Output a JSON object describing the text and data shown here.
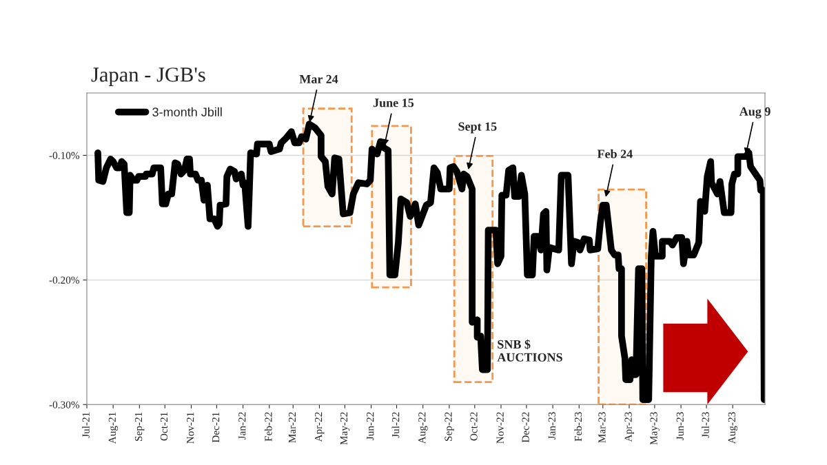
{
  "chart_data": {
    "type": "line",
    "title": "Japan - JGB's",
    "x": [
      "2021-07-14",
      "2021-07-15",
      "2021-07-20",
      "2021-07-24",
      "2021-07-29",
      "2021-08-01",
      "2021-08-05",
      "2021-08-09",
      "2021-08-11",
      "2021-08-14",
      "2021-08-17",
      "2021-08-20",
      "2021-08-21",
      "2021-08-25",
      "2021-08-29",
      "2021-08-31",
      "2021-09-08",
      "2021-09-09",
      "2021-09-16",
      "2021-09-18",
      "2021-09-26",
      "2021-09-28",
      "2021-10-02",
      "2021-10-05",
      "2021-10-09",
      "2021-10-13",
      "2021-10-16",
      "2021-10-20",
      "2021-10-24",
      "2021-10-27",
      "2021-10-30",
      "2021-10-31",
      "2021-11-06",
      "2021-11-09",
      "2021-11-13",
      "2021-11-16",
      "2021-11-20",
      "2021-11-23",
      "2021-11-28",
      "2021-12-02",
      "2021-12-04",
      "2021-12-05",
      "2021-12-12",
      "2021-12-13",
      "2021-12-17",
      "2021-12-22",
      "2021-12-24",
      "2021-12-28",
      "2021-12-30",
      "2022-01-01",
      "2022-01-03",
      "2022-01-07",
      "2022-01-10",
      "2022-01-17",
      "2022-01-18",
      "2022-01-29",
      "2022-02-01",
      "2022-02-03",
      "2022-02-13",
      "2022-02-15",
      "2022-02-21",
      "2022-02-27",
      "2022-03-03",
      "2022-03-08",
      "2022-03-11",
      "2022-03-16",
      "2022-03-20",
      "2022-03-27",
      "2022-04-03",
      "2022-04-03",
      "2022-04-08",
      "2022-04-11",
      "2022-04-16",
      "2022-04-19",
      "2022-04-24",
      "2022-04-29",
      "2022-05-07",
      "2022-05-11",
      "2022-05-17",
      "2022-05-27",
      "2022-05-31",
      "2022-06-02",
      "2022-06-08",
      "2022-06-12",
      "2022-06-16",
      "2022-06-21",
      "2022-06-23",
      "2022-06-29",
      "2022-07-03",
      "2022-07-06",
      "2022-07-13",
      "2022-07-17",
      "2022-07-23",
      "2022-07-27",
      "2022-08-05",
      "2022-08-10",
      "2022-08-14",
      "2022-08-18",
      "2022-08-22",
      "2022-09-01",
      "2022-09-02",
      "2022-09-06",
      "2022-09-10",
      "2022-09-16",
      "2022-09-18",
      "2022-09-22",
      "2022-09-28",
      "2022-09-28",
      "2022-10-04",
      "2022-10-04",
      "2022-10-08",
      "2022-10-10",
      "2022-10-16",
      "2022-10-17",
      "2022-10-26",
      "2022-10-28",
      "2022-11-01",
      "2022-11-02",
      "2022-11-07",
      "2022-11-10",
      "2022-11-15",
      "2022-11-17",
      "2022-11-22",
      "2022-11-25",
      "2022-11-29",
      "2022-12-02",
      "2022-12-08",
      "2022-12-10",
      "2022-12-14",
      "2022-12-18",
      "2022-12-21",
      "2022-12-24",
      "2022-12-25",
      "2022-12-28",
      "2023-01-08",
      "2023-01-10",
      "2023-01-11",
      "2023-01-19",
      "2023-01-23",
      "2023-01-26",
      "2023-01-31",
      "2023-02-02",
      "2023-02-07",
      "2023-02-13",
      "2023-02-14",
      "2023-02-23",
      "2023-02-26",
      "2023-03-01",
      "2023-03-05",
      "2023-03-11",
      "2023-03-15",
      "2023-03-19",
      "2023-03-20",
      "2023-03-23",
      "2023-03-23",
      "2023-03-27",
      "2023-03-28",
      "2023-04-02",
      "2023-04-04",
      "2023-04-06",
      "2023-04-09",
      "2023-04-12",
      "2023-04-16",
      "2023-04-17",
      "2023-04-24",
      "2023-04-27",
      "2023-04-29",
      "2023-05-02",
      "2023-05-10",
      "2023-05-10",
      "2023-05-19",
      "2023-05-22",
      "2023-05-27",
      "2023-06-02",
      "2023-06-04",
      "2023-06-08",
      "2023-06-10",
      "2023-06-16",
      "2023-06-22",
      "2023-06-24",
      "2023-06-29",
      "2023-07-02",
      "2023-07-06",
      "2023-07-07",
      "2023-07-14",
      "2023-07-17",
      "2023-07-22",
      "2023-07-30",
      "2023-07-31",
      "2023-08-03",
      "2023-08-07",
      "2023-08-07",
      "2023-08-16",
      "2023-08-20",
      "2023-08-22",
      "2023-08-29",
      "2023-09-02",
      "2023-09-03",
      "2023-09-06",
      "2023-09-07"
    ],
    "series": [
      {
        "name": "3-month Jbill",
        "color": "#000000",
        "values": [
          -0.098,
          -0.12,
          -0.121,
          -0.11,
          -0.103,
          -0.105,
          -0.11,
          -0.11,
          -0.105,
          -0.107,
          -0.146,
          -0.146,
          -0.116,
          -0.12,
          -0.12,
          -0.117,
          -0.117,
          -0.115,
          -0.115,
          -0.11,
          -0.11,
          -0.139,
          -0.139,
          -0.131,
          -0.131,
          -0.106,
          -0.107,
          -0.115,
          -0.112,
          -0.103,
          -0.103,
          -0.115,
          -0.115,
          -0.12,
          -0.12,
          -0.136,
          -0.124,
          -0.151,
          -0.151,
          -0.157,
          -0.155,
          -0.14,
          -0.139,
          -0.117,
          -0.111,
          -0.113,
          -0.119,
          -0.116,
          -0.115,
          -0.124,
          -0.122,
          -0.157,
          -0.098,
          -0.099,
          -0.091,
          -0.091,
          -0.091,
          -0.097,
          -0.095,
          -0.09,
          -0.086,
          -0.081,
          -0.09,
          -0.09,
          -0.085,
          -0.087,
          -0.075,
          -0.078,
          -0.084,
          -0.101,
          -0.105,
          -0.125,
          -0.131,
          -0.102,
          -0.103,
          -0.147,
          -0.146,
          -0.131,
          -0.122,
          -0.123,
          -0.12,
          -0.095,
          -0.099,
          -0.089,
          -0.094,
          -0.096,
          -0.196,
          -0.196,
          -0.17,
          -0.135,
          -0.138,
          -0.149,
          -0.139,
          -0.156,
          -0.14,
          -0.138,
          -0.11,
          -0.114,
          -0.127,
          -0.127,
          -0.11,
          -0.109,
          -0.113,
          -0.127,
          -0.115,
          -0.117,
          -0.127,
          -0.234,
          -0.232,
          -0.246,
          -0.245,
          -0.272,
          -0.272,
          -0.16,
          -0.16,
          -0.187,
          -0.181,
          -0.132,
          -0.132,
          -0.112,
          -0.11,
          -0.133,
          -0.133,
          -0.116,
          -0.131,
          -0.196,
          -0.196,
          -0.165,
          -0.165,
          -0.176,
          -0.147,
          -0.145,
          -0.192,
          -0.174,
          -0.176,
          -0.136,
          -0.116,
          -0.116,
          -0.187,
          -0.169,
          -0.17,
          -0.176,
          -0.167,
          -0.168,
          -0.176,
          -0.175,
          -0.154,
          -0.14,
          -0.14,
          -0.176,
          -0.18,
          -0.18,
          -0.191,
          -0.191,
          -0.245,
          -0.263,
          -0.28,
          -0.28,
          -0.264,
          -0.276,
          -0.276,
          -0.191,
          -0.191,
          -0.296,
          -0.296,
          -0.181,
          -0.161,
          -0.181,
          -0.181,
          -0.169,
          -0.169,
          -0.172,
          -0.166,
          -0.166,
          -0.187,
          -0.169,
          -0.18,
          -0.18,
          -0.17,
          -0.137,
          -0.145,
          -0.117,
          -0.105,
          -0.122,
          -0.131,
          -0.121,
          -0.146,
          -0.146,
          -0.123,
          -0.115,
          -0.115,
          -0.101,
          -0.101,
          -0.098,
          -0.109,
          -0.116,
          -0.12,
          -0.128,
          -0.128,
          -0.296
        ]
      }
    ],
    "xlim": [
      "2021-07-01",
      "2023-09-08"
    ],
    "xticks": [
      {
        "value": "2021-07-01",
        "label": "Jul-21"
      },
      {
        "value": "2021-08-01",
        "label": "Aug-21"
      },
      {
        "value": "2021-09-01",
        "label": "Sep-21"
      },
      {
        "value": "2021-10-01",
        "label": "Oct-21"
      },
      {
        "value": "2021-11-01",
        "label": "Nov-21"
      },
      {
        "value": "2021-12-01",
        "label": "Dec-21"
      },
      {
        "value": "2022-01-01",
        "label": "Jan-22"
      },
      {
        "value": "2022-02-01",
        "label": "Feb-22"
      },
      {
        "value": "2022-03-01",
        "label": "Mar-22"
      },
      {
        "value": "2022-04-01",
        "label": "Apr-22"
      },
      {
        "value": "2022-05-01",
        "label": "May-22"
      },
      {
        "value": "2022-06-01",
        "label": "Jun-22"
      },
      {
        "value": "2022-07-01",
        "label": "Jul-22"
      },
      {
        "value": "2022-08-01",
        "label": "Aug-22"
      },
      {
        "value": "2022-09-01",
        "label": "Sep-22"
      },
      {
        "value": "2022-10-01",
        "label": "Oct-22"
      },
      {
        "value": "2022-11-01",
        "label": "Nov-22"
      },
      {
        "value": "2022-12-01",
        "label": "Dec-22"
      },
      {
        "value": "2023-01-01",
        "label": "Jan-23"
      },
      {
        "value": "2023-02-01",
        "label": "Feb-23"
      },
      {
        "value": "2023-03-01",
        "label": "Mar-23"
      },
      {
        "value": "2023-04-01",
        "label": "Apr-23"
      },
      {
        "value": "2023-05-01",
        "label": "May-23"
      },
      {
        "value": "2023-06-01",
        "label": "Jun-23"
      },
      {
        "value": "2023-07-01",
        "label": "Jul-23"
      },
      {
        "value": "2023-08-01",
        "label": "Aug-23"
      }
    ],
    "ylim": [
      -0.3,
      -0.05
    ],
    "yticks": [
      {
        "value": -0.1,
        "label": "-0.10%"
      },
      {
        "value": -0.2,
        "label": "-0.20%"
      },
      {
        "value": -0.3,
        "label": "-0.30%"
      }
    ],
    "grid": "y",
    "legend": "top left",
    "line_style": "solid",
    "marker": "none",
    "bands": [
      {
        "axis": "x",
        "from": "2022-03-13",
        "to": "2022-05-09",
        "color": "#f79646"
      },
      {
        "axis": "x",
        "from": "2022-06-02",
        "to": "2022-07-18",
        "color": "#f79646"
      },
      {
        "axis": "x",
        "from": "2022-09-07",
        "to": "2022-10-22",
        "color": "#f79646"
      },
      {
        "axis": "x",
        "from": "2023-02-24",
        "to": "2023-04-21",
        "color": "#f79646"
      }
    ],
    "annotations": [
      {
        "text": "Mar 24",
        "x": "2022-03-20",
        "y": -0.075
      },
      {
        "text": "June 15",
        "x": "2022-06-16",
        "y": -0.094
      },
      {
        "text": "Sept 15",
        "x": "2022-09-23",
        "y": -0.113
      },
      {
        "text": "Feb 24",
        "x": "2023-03-04",
        "y": -0.135
      },
      {
        "text": "Aug 9",
        "x": "2023-08-16",
        "y": -0.101
      },
      "SNB $\nAUCTIONS"
    ]
  }
}
